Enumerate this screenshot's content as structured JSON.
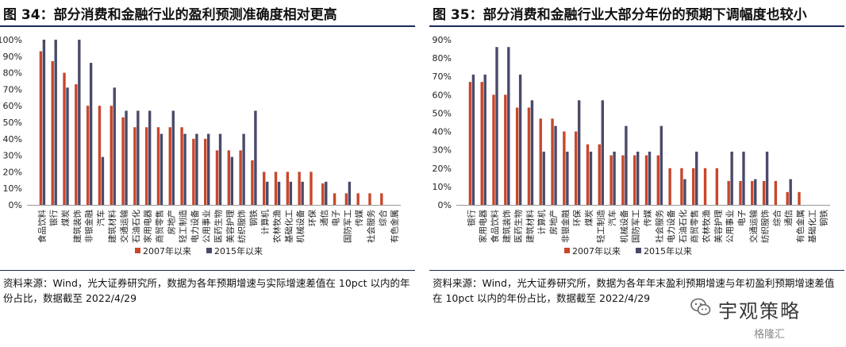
{
  "figures": [
    {
      "title": "图 34：部分消费和金融行业的盈利预测准确度相对更高",
      "source": "资料来源：Wind，光大证券研究所，数据为各年预期增速与实际增速差值在 10pct 以内的年份占比，数据截至 2022/4/29"
    },
    {
      "title": "图 35：部分消费和金融行业大部分年份的预期下调幅度也较小",
      "source": "资料来源：Wind，光大证券研究所，数据为各年年末盈利预期增速与年初盈利预期增速差值在 10pct 以内的年份占比，数据截至 2022/4/29"
    }
  ],
  "colors": {
    "series1": "#c8472b",
    "series2": "#4a4a6a",
    "rule": "#1a2a55"
  },
  "watermark": {
    "main": "宇观策略",
    "small": "格隆汇",
    "icon": "wechat-icon"
  },
  "chart_data": [
    {
      "type": "bar",
      "title": "图 34：部分消费和金融行业的盈利预测准确度相对更高",
      "ylim": [
        0,
        100
      ],
      "yticks": [
        "0%",
        "10%",
        "20%",
        "30%",
        "40%",
        "50%",
        "60%",
        "70%",
        "80%",
        "90%",
        "100%"
      ],
      "categories": [
        "食品饮料",
        "银行",
        "煤炭",
        "建筑装饰",
        "非银金融",
        "汽车",
        "建筑材料",
        "交通运输",
        "石油石化",
        "家用电器",
        "商贸零售",
        "房地产",
        "轻工制造",
        "电力设备",
        "公用事业",
        "医药生物",
        "美容护理",
        "纺织服饰",
        "钢铁",
        "计算机",
        "农林牧渔",
        "基础化工",
        "机械设备",
        "环保",
        "通信",
        "电子",
        "国防军工",
        "传媒",
        "社会服务",
        "综合",
        "有色金属"
      ],
      "series": [
        {
          "name": "2007年以来",
          "values": [
            93,
            87,
            80,
            73,
            60,
            60,
            60,
            53,
            47,
            47,
            47,
            47,
            47,
            40,
            40,
            33,
            33,
            33,
            27,
            20,
            20,
            20,
            20,
            20,
            13,
            7,
            7,
            7,
            7,
            7,
            0
          ]
        },
        {
          "name": "2015年以来",
          "values": [
            100,
            100,
            71,
            100,
            86,
            29,
            71,
            57,
            57,
            57,
            43,
            57,
            43,
            43,
            43,
            43,
            29,
            43,
            57,
            14,
            14,
            14,
            14,
            0,
            14,
            0,
            14,
            0,
            0,
            0,
            0
          ]
        }
      ]
    },
    {
      "type": "bar",
      "title": "图 35：部分消费和金融行业大部分年份的预期下调幅度也较小",
      "ylim": [
        0,
        90
      ],
      "yticks": [
        "0%",
        "10%",
        "20%",
        "30%",
        "40%",
        "50%",
        "60%",
        "70%",
        "80%",
        "90%"
      ],
      "categories": [
        "银行",
        "家用电器",
        "食品饮料",
        "建筑装饰",
        "医药生物",
        "建筑材料",
        "计算机",
        "房地产",
        "非银金融",
        "环保",
        "煤炭",
        "轻工制造",
        "汽车",
        "机械设备",
        "国防军工",
        "传媒",
        "社会服务",
        "电力设备",
        "石油石化",
        "商贸零售",
        "农林牧渔",
        "美容护理",
        "公用事业",
        "电子",
        "交通运输",
        "纺织服饰",
        "综合",
        "通信",
        "有色金属",
        "基础化工",
        "钢铁"
      ],
      "series": [
        {
          "name": "2007年以来",
          "values": [
            67,
            67,
            60,
            60,
            53,
            53,
            47,
            47,
            40,
            40,
            33,
            33,
            27,
            27,
            27,
            27,
            27,
            20,
            20,
            20,
            20,
            20,
            13,
            13,
            13,
            13,
            13,
            7,
            7,
            0,
            0
          ]
        },
        {
          "name": "2015年以来",
          "values": [
            71,
            71,
            86,
            86,
            71,
            57,
            29,
            43,
            29,
            57,
            29,
            57,
            29,
            43,
            29,
            29,
            43,
            0,
            14,
            29,
            0,
            0,
            29,
            29,
            14,
            29,
            0,
            14,
            0,
            0,
            0
          ]
        }
      ]
    }
  ]
}
